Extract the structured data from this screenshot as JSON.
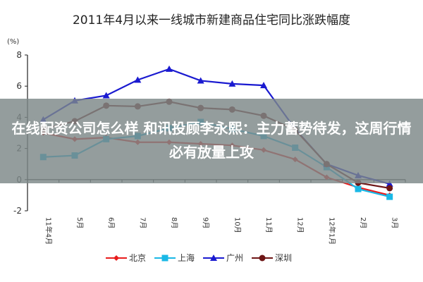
{
  "chart_data": {
    "type": "line",
    "title": "2011年4月以来一线城市新建商品住宅同比涨跌幅度",
    "ylabel": "(%)",
    "ylim": [
      -2,
      8
    ],
    "yticks": [
      -2,
      0,
      2,
      4,
      6,
      8
    ],
    "categories": [
      "11年4月",
      "5月",
      "6月",
      "7月",
      "8月",
      "9月",
      "10月",
      "11月",
      "12月",
      "12年1月",
      "2月",
      "3月"
    ],
    "legend_position": "bottom",
    "grid": false,
    "series": [
      {
        "name": "北京",
        "color": "#e81c1c",
        "marker": "diamond",
        "values": [
          3.0,
          2.6,
          2.7,
          2.4,
          2.4,
          2.3,
          2.2,
          1.9,
          1.3,
          0.15,
          -0.5,
          -1.0
        ]
      },
      {
        "name": "上海",
        "color": "#19b8e6",
        "marker": "square",
        "values": [
          1.45,
          1.55,
          2.6,
          2.8,
          3.3,
          3.7,
          3.25,
          2.8,
          2.05,
          0.8,
          -0.6,
          -1.1
        ]
      },
      {
        "name": "广州",
        "color": "#1a1ad0",
        "marker": "triangle",
        "values": [
          3.85,
          5.07,
          5.4,
          6.4,
          7.1,
          6.35,
          6.15,
          6.05,
          3.25,
          1.0,
          0.27,
          -0.27
        ]
      },
      {
        "name": "深圳",
        "color": "#6e1616",
        "marker": "circle",
        "values": [
          3.25,
          3.75,
          4.75,
          4.7,
          5.0,
          4.6,
          4.5,
          4.1,
          3.2,
          1.0,
          -0.2,
          -0.55
        ]
      }
    ]
  },
  "overlay": {
    "headline": "在线配资公司怎么样 和讯投顾李永熙：主力蓄势待发，这周行情必有放量上攻"
  }
}
